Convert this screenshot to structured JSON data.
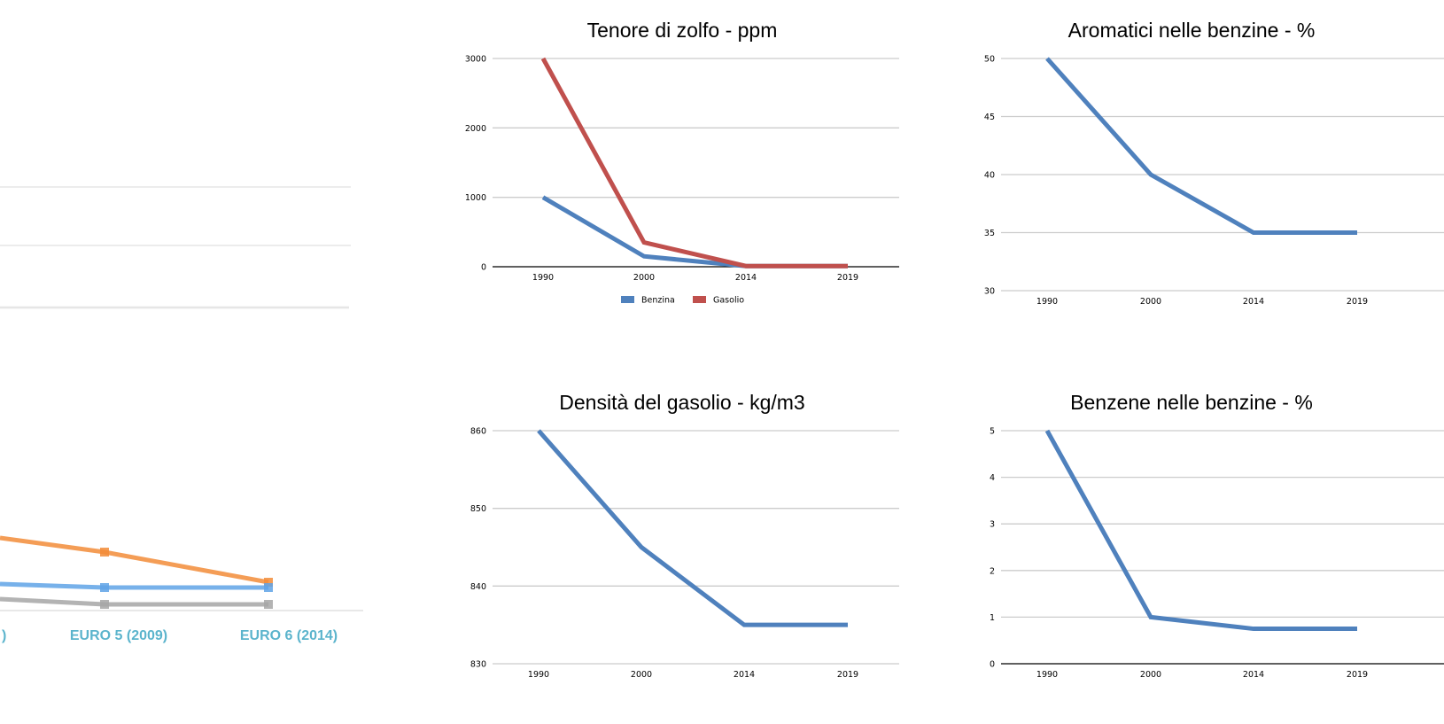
{
  "chart_data": [
    {
      "type": "line",
      "title": "Tenore di zolfo - ppm",
      "categories": [
        "1990",
        "2000",
        "2014",
        "2019"
      ],
      "ylim": [
        0,
        3000
      ],
      "yticks": [
        0,
        1000,
        2000,
        3000
      ],
      "grid": true,
      "legend": "bottom",
      "series": [
        {
          "name": "Benzina",
          "values": [
            1000,
            150,
            10,
            10
          ],
          "color": "#4f81bd"
        },
        {
          "name": "Gasolio",
          "values": [
            3000,
            350,
            10,
            10
          ],
          "color": "#c0504d"
        }
      ]
    },
    {
      "type": "line",
      "title": "Aromatici nelle benzine - %",
      "categories": [
        "1990",
        "2000",
        "2014",
        "2019"
      ],
      "ylim": [
        30,
        50
      ],
      "yticks": [
        30,
        35,
        40,
        45,
        50
      ],
      "grid": true,
      "series": [
        {
          "values": [
            50,
            40,
            35,
            35
          ],
          "color": "#4f81bd"
        }
      ]
    },
    {
      "type": "line",
      "title": "Densità del gasolio - kg/m3",
      "categories": [
        "1990",
        "2000",
        "2014",
        "2019"
      ],
      "ylim": [
        830,
        860
      ],
      "yticks": [
        830,
        840,
        850,
        860
      ],
      "grid": true,
      "series": [
        {
          "values": [
            860,
            845,
            835,
            835
          ],
          "color": "#4f81bd"
        }
      ]
    },
    {
      "type": "line",
      "title": "Benzene nelle benzine - %",
      "categories": [
        "1990",
        "2000",
        "2014",
        "2019"
      ],
      "ylim": [
        0,
        5
      ],
      "yticks": [
        0,
        1,
        2,
        3,
        4,
        5
      ],
      "grid": true,
      "series": [
        {
          "values": [
            5,
            1,
            0.75,
            0.75
          ],
          "color": "#4f81bd"
        }
      ]
    },
    {
      "type": "line",
      "title": "",
      "categories": [
        "EURO 5 (2009)",
        "EURO 6 (2014)"
      ],
      "grid": true,
      "series": [
        {
          "color": "#f28c38"
        },
        {
          "color": "#5fa3e6"
        },
        {
          "color": "#a6a6a6"
        }
      ]
    }
  ]
}
